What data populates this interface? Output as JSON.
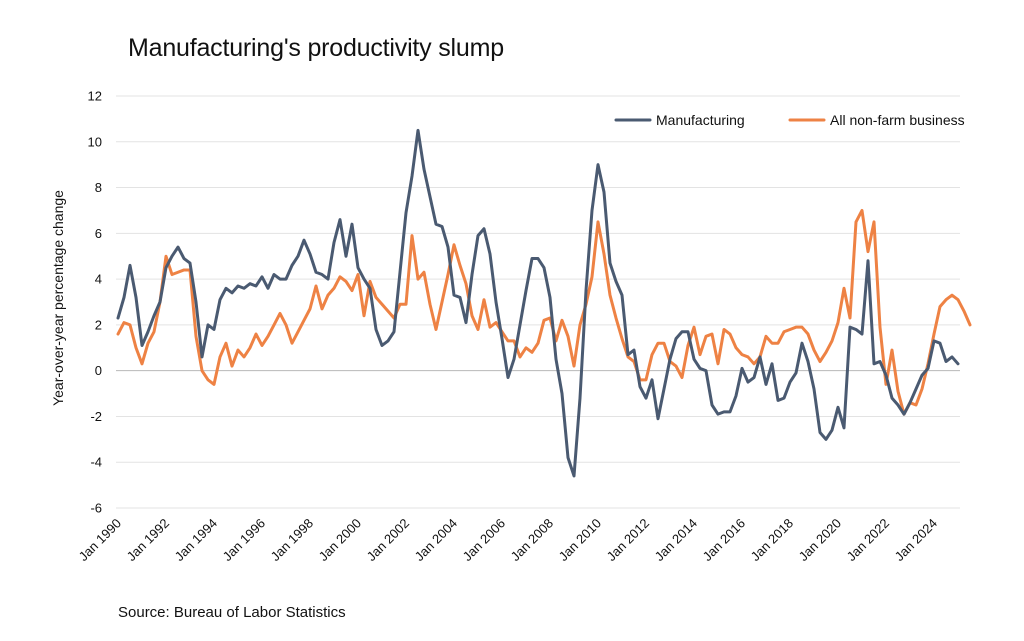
{
  "chart_data": {
    "type": "line",
    "title": "Manufacturing's productivity slump",
    "source": "Source: Bureau of Labor Statistics",
    "ylabel": "Year-over-year percentage change",
    "xlabel": "",
    "ylim": [
      -6,
      12
    ],
    "yticks": [
      -6,
      -4,
      -2,
      0,
      2,
      4,
      6,
      8,
      10,
      12
    ],
    "x_start": "1990-Q1",
    "x_frequency": "quarterly",
    "xtick_labels": [
      "Jan 1990",
      "Jan 1992",
      "Jan 1994",
      "Jan 1996",
      "Jan 1998",
      "Jan 2000",
      "Jan 2002",
      "Jan 2004",
      "Jan 2006",
      "Jan 2008",
      "Jan 2010",
      "Jan 2012",
      "Jan 2014",
      "Jan 2016",
      "Jan 2018",
      "Jan 2020",
      "Jan 2022",
      "Jan 2024"
    ],
    "grid": "horizontal",
    "legend_position": "top-right",
    "series": [
      {
        "name": "Manufacturing",
        "color": "#4a5a71",
        "values": [
          2.3,
          3.2,
          4.6,
          3.2,
          1.1,
          1.7,
          2.4,
          3.0,
          4.5,
          5.0,
          5.4,
          4.9,
          4.7,
          3.0,
          0.6,
          2.0,
          1.8,
          3.1,
          3.6,
          3.4,
          3.7,
          3.6,
          3.8,
          3.7,
          4.1,
          3.6,
          4.2,
          4.0,
          4.0,
          4.6,
          5.0,
          5.7,
          5.1,
          4.3,
          4.2,
          4.0,
          5.6,
          6.6,
          5.0,
          6.4,
          4.5,
          4.0,
          3.6,
          1.8,
          1.1,
          1.3,
          1.7,
          4.3,
          6.9,
          8.5,
          10.5,
          8.8,
          7.6,
          6.4,
          6.3,
          5.4,
          3.3,
          3.2,
          2.1,
          4.2,
          5.9,
          6.2,
          5.1,
          3.0,
          1.4,
          -0.3,
          0.5,
          2.0,
          3.5,
          4.9,
          4.9,
          4.5,
          3.2,
          0.5,
          -1.0,
          -3.8,
          -4.6,
          -1.2,
          3.5,
          7.0,
          9.0,
          7.8,
          4.7,
          3.9,
          3.3,
          0.7,
          0.9,
          -0.7,
          -1.2,
          -0.4,
          -2.1,
          -0.8,
          0.5,
          1.4,
          1.7,
          1.7,
          0.5,
          0.1,
          0.0,
          -1.5,
          -1.9,
          -1.8,
          -1.8,
          -1.1,
          0.1,
          -0.5,
          -0.3,
          0.6,
          -0.6,
          0.3,
          -1.3,
          -1.2,
          -0.5,
          -0.1,
          1.2,
          0.4,
          -0.8,
          -2.7,
          -3.0,
          -2.6,
          -1.6,
          -2.5,
          1.9,
          1.8,
          1.6,
          4.8,
          0.3,
          0.4,
          -0.2,
          -1.2,
          -1.5,
          -1.9,
          -1.4,
          -0.8,
          -0.2,
          0.1,
          1.3,
          1.2,
          0.4,
          0.6,
          0.3
        ]
      },
      {
        "name": "All non-farm business",
        "color": "#ee8244",
        "values": [
          1.6,
          2.1,
          2.0,
          1.0,
          0.3,
          1.2,
          1.7,
          3.0,
          5.0,
          4.2,
          4.3,
          4.4,
          4.4,
          1.5,
          0.0,
          -0.4,
          -0.6,
          0.6,
          1.2,
          0.2,
          0.9,
          0.6,
          1.0,
          1.6,
          1.1,
          1.5,
          2.0,
          2.5,
          2.0,
          1.2,
          1.7,
          2.2,
          2.7,
          3.7,
          2.7,
          3.3,
          3.6,
          4.1,
          3.9,
          3.5,
          4.2,
          2.4,
          3.9,
          3.2,
          2.9,
          2.6,
          2.3,
          2.9,
          2.9,
          5.9,
          4.0,
          4.3,
          2.9,
          1.8,
          3.0,
          4.2,
          5.5,
          4.6,
          3.8,
          2.4,
          1.8,
          3.1,
          1.9,
          2.1,
          1.7,
          1.3,
          1.3,
          0.6,
          1.0,
          0.8,
          1.2,
          2.2,
          2.3,
          1.3,
          2.2,
          1.5,
          0.2,
          2.0,
          2.9,
          4.1,
          6.5,
          5.1,
          3.3,
          2.3,
          1.4,
          0.6,
          0.4,
          -0.4,
          -0.4,
          0.7,
          1.2,
          1.2,
          0.4,
          0.2,
          -0.3,
          1.1,
          1.9,
          0.7,
          1.5,
          1.6,
          0.3,
          1.8,
          1.6,
          1.0,
          0.7,
          0.6,
          0.3,
          0.6,
          1.5,
          1.2,
          1.2,
          1.7,
          1.8,
          1.9,
          1.9,
          1.6,
          0.9,
          0.4,
          0.8,
          1.3,
          2.1,
          3.6,
          2.3,
          6.5,
          7.0,
          5.2,
          6.5,
          1.9,
          -0.6,
          0.9,
          -0.9,
          -1.9,
          -1.4,
          -1.5,
          -0.8,
          0.3,
          1.6,
          2.8,
          3.1,
          3.3,
          3.1,
          2.6,
          2.0
        ]
      }
    ]
  }
}
